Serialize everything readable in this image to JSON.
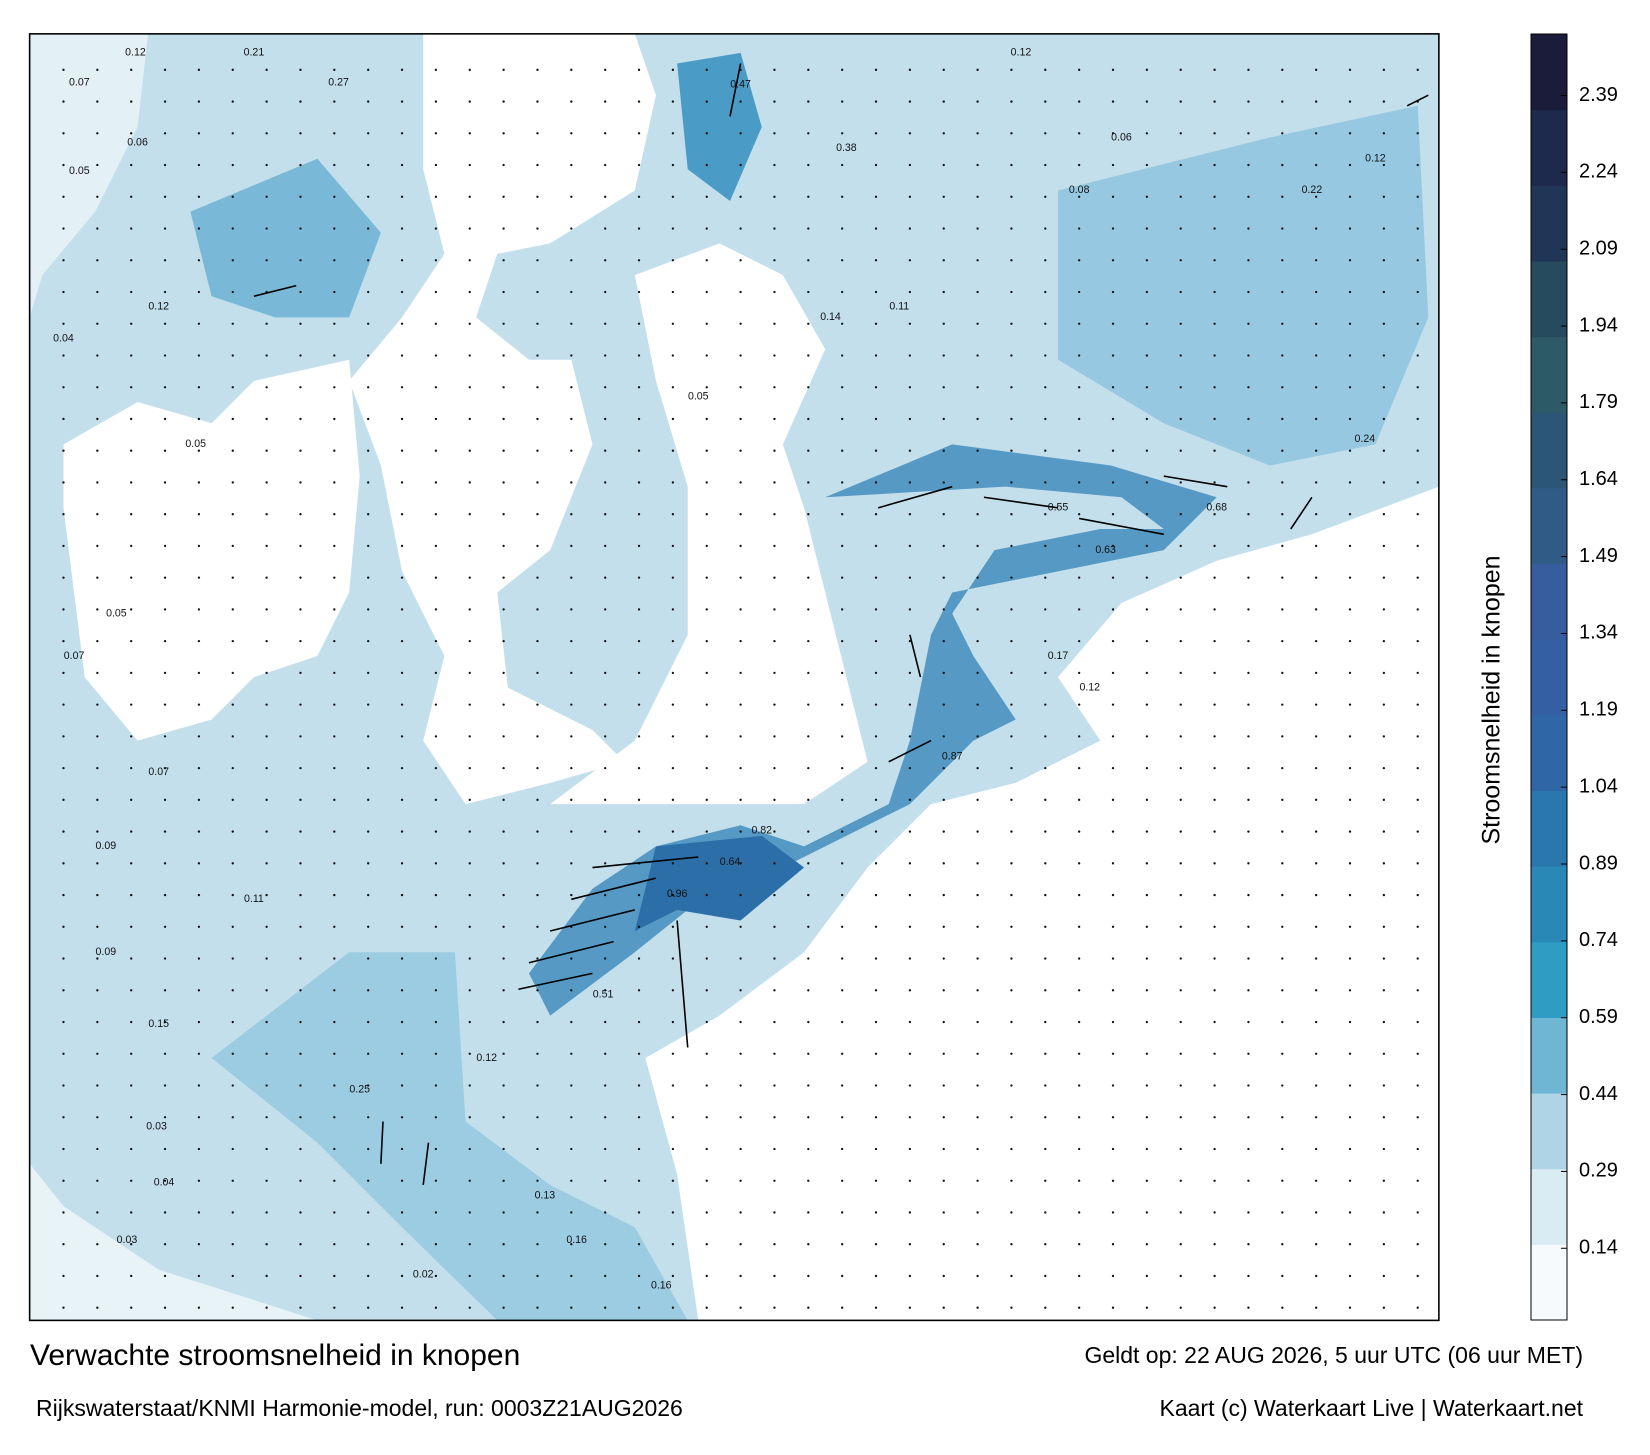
{
  "map": {
    "title": "Verwachte stroomsnelheid in knopen",
    "subtitle": "Rijkswaterstaat/KNMI Harmonie-model, run: 0003Z21AUG2026",
    "valid_time": "Geldt op: 22 AUG 2026, 5 uur UTC (06 uur MET)",
    "credit": "Kaart (c) Waterkaart Live | Waterkaart.net",
    "speed_labels": [
      0.12,
      0.07,
      0.21,
      0.27,
      0.06,
      0.05,
      0.12,
      0.04,
      0.05,
      0.05,
      0.07,
      0.07,
      0.09,
      0.11,
      0.09,
      0.15,
      0.03,
      0.04,
      0.03,
      0.02,
      0.12,
      0.06,
      0.08,
      0.11,
      0.14,
      0.05,
      0.55,
      0.63,
      0.87,
      0.64,
      0.96,
      0.82,
      0.51,
      0.12,
      0.25,
      0.13,
      0.16,
      0.16,
      0.22,
      0.12,
      0.24,
      0.68,
      0.17,
      0.12,
      0.38,
      0.47
    ],
    "colorbar": {
      "label": "Stroomsnelheid in knopen",
      "lim": [
        0,
        2.51
      ],
      "ticks": [
        0.14,
        0.29,
        0.44,
        0.59,
        0.74,
        0.89,
        1.04,
        1.19,
        1.34,
        1.49,
        1.64,
        1.79,
        1.94,
        2.09,
        2.24,
        2.39
      ],
      "colors": [
        "#f6fafc",
        "#d9ebf3",
        "#aed4e6",
        "#6fb5d4",
        "#2f9cc4",
        "#2a88b6",
        "#2a77ae",
        "#2f66a6",
        "#3460a3",
        "#375d9e",
        "#2f5b86",
        "#2d5676",
        "#2d5a66",
        "#264a5e",
        "#1f3656",
        "#1d2a4c",
        "#1b1c3a"
      ]
    }
  }
}
